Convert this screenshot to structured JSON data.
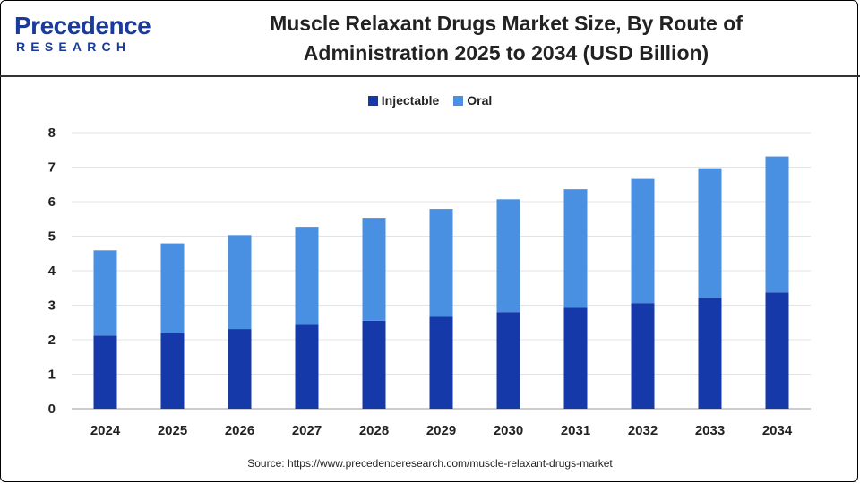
{
  "header": {
    "logo_main": "Precedence",
    "logo_sub": "RESEARCH",
    "title_line1": "Muscle Relaxant Drugs Market Size, By Route of",
    "title_line2": "Administration 2025 to 2034 (USD Billion)"
  },
  "colors": {
    "injectable": "#1539a8",
    "oral": "#4a90e2",
    "brand": "#1a3a9c"
  },
  "footer": {
    "source": "Source: https://www.precedenceresearch.com/muscle-relaxant-drugs-market"
  },
  "chart_data": {
    "type": "bar",
    "stacked": true,
    "title": "Muscle Relaxant Drugs Market Size, By Route of Administration 2025 to 2034 (USD Billion)",
    "xlabel": "",
    "ylabel": "",
    "ylim": [
      0,
      8
    ],
    "yticks": [
      0,
      1,
      2,
      3,
      4,
      5,
      6,
      7,
      8
    ],
    "grid": true,
    "legend_position": "top-center",
    "categories": [
      "2024",
      "2025",
      "2026",
      "2027",
      "2028",
      "2029",
      "2030",
      "2031",
      "2032",
      "2033",
      "2034"
    ],
    "series": [
      {
        "name": "Injectable",
        "values": [
          2.12,
          2.2,
          2.31,
          2.43,
          2.55,
          2.67,
          2.8,
          2.93,
          3.06,
          3.21,
          3.37
        ]
      },
      {
        "name": "Oral",
        "values": [
          2.47,
          2.59,
          2.72,
          2.84,
          2.98,
          3.12,
          3.27,
          3.43,
          3.6,
          3.76,
          3.94
        ]
      }
    ]
  }
}
